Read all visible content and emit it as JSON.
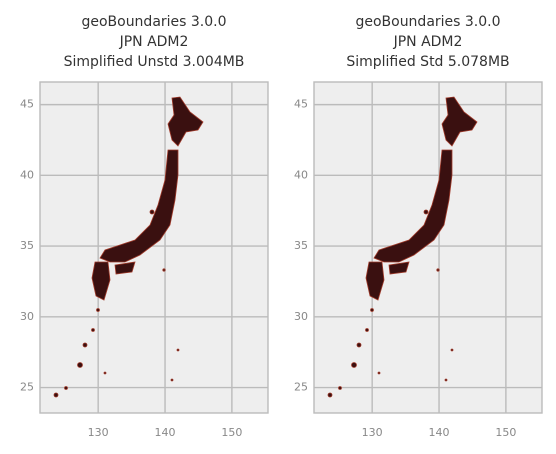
{
  "chart_data": [
    {
      "type": "map",
      "title": [
        "geoBoundaries 3.0.0",
        "JPN ADM2",
        "Simplified Unstd 3.004MB"
      ],
      "xlim": [
        121.3,
        155.4
      ],
      "ylim": [
        23.2,
        46.6
      ],
      "xticks": [
        130,
        140,
        150
      ],
      "yticks": [
        25,
        30,
        35,
        40,
        45
      ],
      "grid": true
    },
    {
      "type": "map",
      "title": [
        "geoBoundaries 3.0.0",
        "JPN ADM2",
        "Simplified Std 5.078MB"
      ],
      "xlim": [
        121.3,
        155.4
      ],
      "ylim": [
        23.2,
        46.6
      ],
      "xticks": [
        130,
        140,
        150
      ],
      "yticks": [
        25,
        30,
        35,
        40,
        45
      ],
      "grid": true
    }
  ]
}
